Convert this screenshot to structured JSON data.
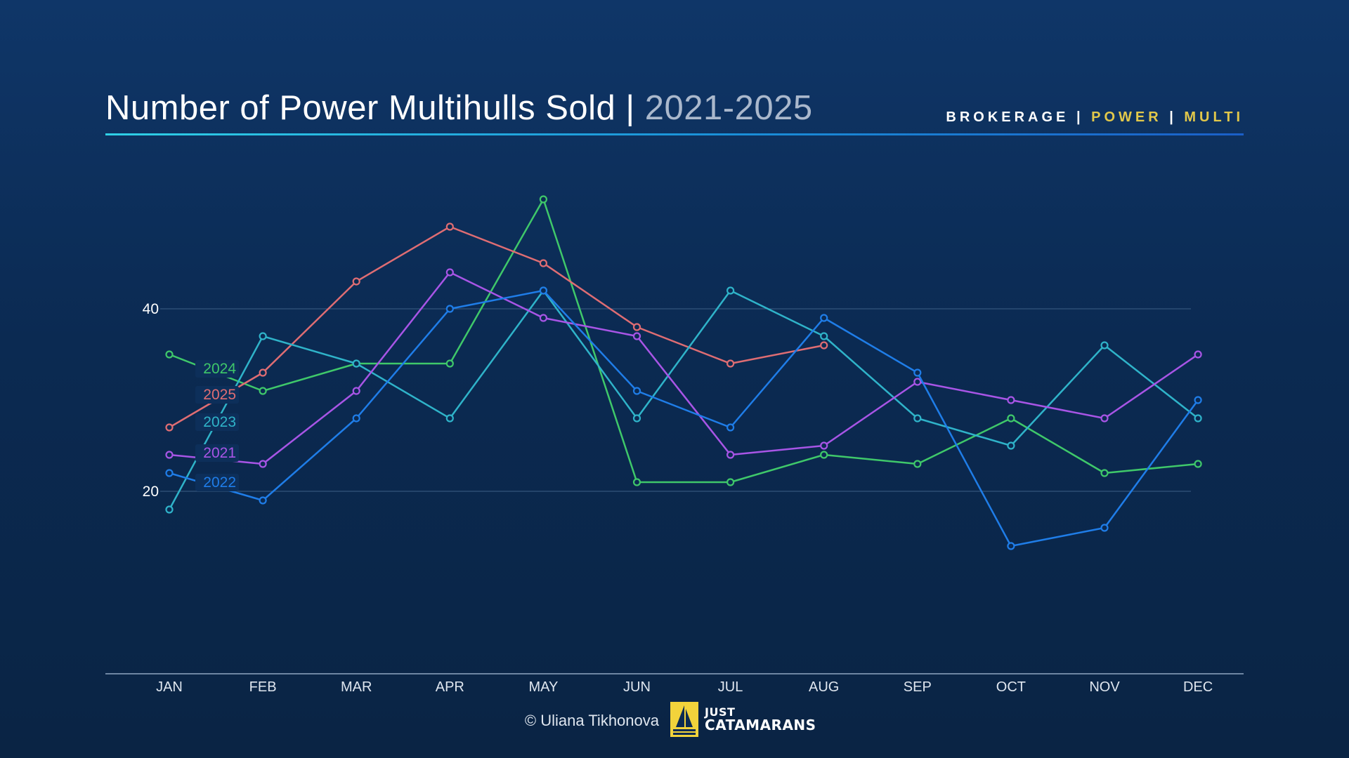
{
  "header": {
    "title_main": "Number of Power Multihulls Sold",
    "title_sep": " | ",
    "title_years": "2021-2025",
    "tag_brokerage": "BROKERAGE",
    "tag_sep": " | ",
    "tag_power": "POWER",
    "tag_multi": "MULTI"
  },
  "footer": {
    "credit": "© Uliana Tikhonova",
    "logo_line1": "JUST",
    "logo_line2": "CATAMARANS"
  },
  "colors": {
    "2021": "#a855e6",
    "2022": "#1f7de8",
    "2023": "#2fb3c9",
    "2024": "#3fc86a",
    "2025": "#df6d73",
    "accent": "#e2c84a",
    "gridline": "#3d5f86"
  },
  "chart_data": {
    "type": "line",
    "title": "Number of Power Multihulls Sold | 2021-2025",
    "x": [
      "JAN",
      "FEB",
      "MAR",
      "APR",
      "MAY",
      "JUN",
      "JUL",
      "AUG",
      "SEP",
      "OCT",
      "NOV",
      "DEC"
    ],
    "yticks": [
      20,
      40
    ],
    "ylim": [
      1,
      57
    ],
    "grid": "horizontal at ticks",
    "legend": "inline labels at left next to JAN",
    "series": [
      {
        "name": "2024",
        "color": "#3fc86a",
        "values": [
          35,
          31,
          34,
          34,
          52,
          21,
          21,
          24,
          23,
          28,
          22,
          23
        ]
      },
      {
        "name": "2025",
        "color": "#df6d73",
        "values": [
          27,
          33,
          43,
          49,
          45,
          38,
          34,
          36,
          null,
          null,
          null,
          null
        ]
      },
      {
        "name": "2023",
        "color": "#2fb3c9",
        "values": [
          18,
          37,
          34,
          28,
          42,
          28,
          42,
          37,
          28,
          25,
          36,
          28
        ]
      },
      {
        "name": "2021",
        "color": "#a855e6",
        "values": [
          24,
          23,
          31,
          44,
          39,
          37,
          24,
          25,
          32,
          30,
          28,
          35
        ]
      },
      {
        "name": "2022",
        "color": "#1f7de8",
        "values": [
          22,
          19,
          28,
          40,
          42,
          31,
          27,
          39,
          33,
          14,
          16,
          30
        ]
      }
    ]
  }
}
